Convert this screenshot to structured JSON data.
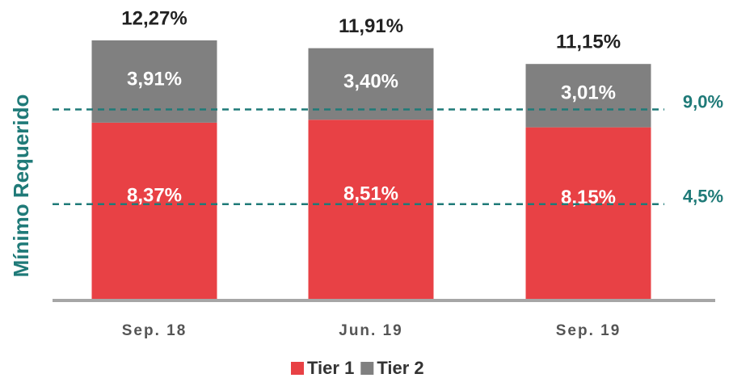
{
  "chart_data": {
    "type": "stacked_bar",
    "y_label": "Mínimo Requerido",
    "categories": [
      "Sep. 18",
      "Jun. 19",
      "Sep. 19"
    ],
    "series": [
      {
        "name": "Tier 1",
        "color": "#e84145",
        "values": [
          8.37,
          8.51,
          8.15
        ],
        "value_labels": [
          "8,37%",
          "8,51%",
          "8,15%"
        ]
      },
      {
        "name": "Tier 2",
        "color": "#808080",
        "values": [
          3.91,
          3.4,
          3.01
        ],
        "value_labels": [
          "3,91%",
          "3,40%",
          "3,01%"
        ]
      }
    ],
    "totals": [
      12.27,
      11.91,
      11.15
    ],
    "total_labels": [
      "12,27%",
      "11,91%",
      "11,15%"
    ],
    "reference_lines": [
      {
        "value": 9.0,
        "label": "9,0%",
        "color": "#1f7a78"
      },
      {
        "value": 4.5,
        "label": "4,5%",
        "color": "#1f7a78"
      }
    ]
  }
}
